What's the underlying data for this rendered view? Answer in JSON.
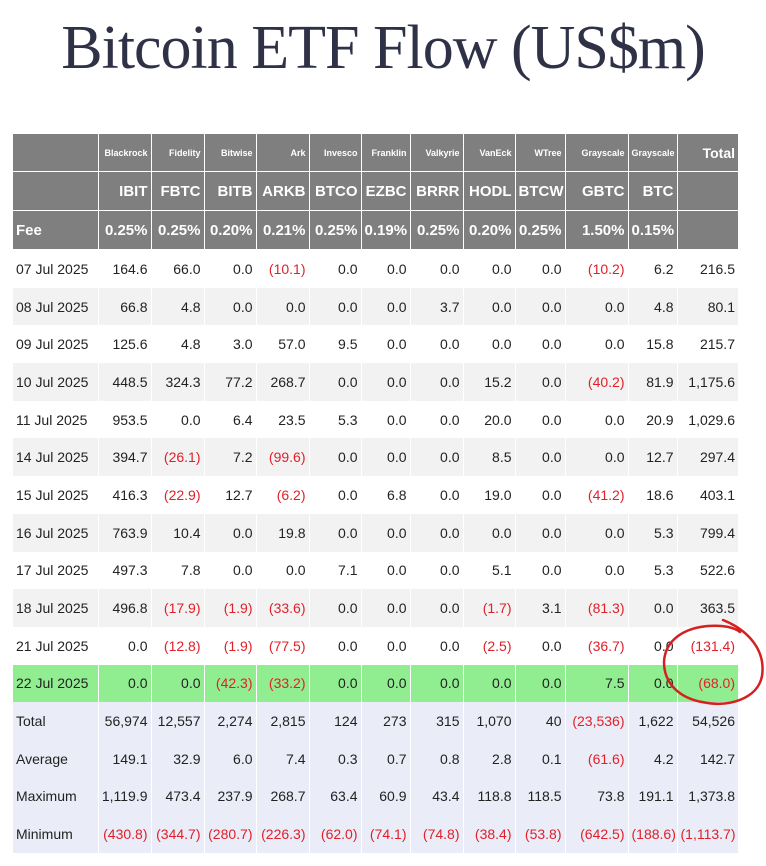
{
  "title": "Bitcoin ETF Flow (US$m)",
  "chart_data": {
    "type": "table",
    "issuers": [
      "Blackrock",
      "Fidelity",
      "Bitwise",
      "Ark",
      "Invesco",
      "Franklin",
      "Valkyrie",
      "VanEck",
      "WTree",
      "Grayscale",
      "Grayscale"
    ],
    "total_header": "Total",
    "tickers": [
      "IBIT",
      "FBTC",
      "BITB",
      "ARKB",
      "BTCO",
      "EZBC",
      "BRRR",
      "HODL",
      "BTCW",
      "GBTC",
      "BTC"
    ],
    "fee_label": "Fee",
    "fees": [
      "0.25%",
      "0.25%",
      "0.20%",
      "0.21%",
      "0.25%",
      "0.19%",
      "0.25%",
      "0.20%",
      "0.25%",
      "1.50%",
      "0.15%"
    ],
    "rows": [
      {
        "date": "07 Jul 2025",
        "values": [
          "164.6",
          "66.0",
          "0.0",
          "(10.1)",
          "0.0",
          "0.0",
          "0.0",
          "0.0",
          "0.0",
          "(10.2)",
          "6.2",
          "216.5"
        ]
      },
      {
        "date": "08 Jul 2025",
        "values": [
          "66.8",
          "4.8",
          "0.0",
          "0.0",
          "0.0",
          "0.0",
          "3.7",
          "0.0",
          "0.0",
          "0.0",
          "4.8",
          "80.1"
        ]
      },
      {
        "date": "09 Jul 2025",
        "values": [
          "125.6",
          "4.8",
          "3.0",
          "57.0",
          "9.5",
          "0.0",
          "0.0",
          "0.0",
          "0.0",
          "0.0",
          "15.8",
          "215.7"
        ]
      },
      {
        "date": "10 Jul 2025",
        "values": [
          "448.5",
          "324.3",
          "77.2",
          "268.7",
          "0.0",
          "0.0",
          "0.0",
          "15.2",
          "0.0",
          "(40.2)",
          "81.9",
          "1,175.6"
        ]
      },
      {
        "date": "11 Jul 2025",
        "values": [
          "953.5",
          "0.0",
          "6.4",
          "23.5",
          "5.3",
          "0.0",
          "0.0",
          "20.0",
          "0.0",
          "0.0",
          "20.9",
          "1,029.6"
        ]
      },
      {
        "date": "14 Jul 2025",
        "values": [
          "394.7",
          "(26.1)",
          "7.2",
          "(99.6)",
          "0.0",
          "0.0",
          "0.0",
          "8.5",
          "0.0",
          "0.0",
          "12.7",
          "297.4"
        ]
      },
      {
        "date": "15 Jul 2025",
        "values": [
          "416.3",
          "(22.9)",
          "12.7",
          "(6.2)",
          "0.0",
          "6.8",
          "0.0",
          "19.0",
          "0.0",
          "(41.2)",
          "18.6",
          "403.1"
        ]
      },
      {
        "date": "16 Jul 2025",
        "values": [
          "763.9",
          "10.4",
          "0.0",
          "19.8",
          "0.0",
          "0.0",
          "0.0",
          "0.0",
          "0.0",
          "0.0",
          "5.3",
          "799.4"
        ]
      },
      {
        "date": "17 Jul 2025",
        "values": [
          "497.3",
          "7.8",
          "0.0",
          "0.0",
          "7.1",
          "0.0",
          "0.0",
          "5.1",
          "0.0",
          "0.0",
          "5.3",
          "522.6"
        ]
      },
      {
        "date": "18 Jul 2025",
        "values": [
          "496.8",
          "(17.9)",
          "(1.9)",
          "(33.6)",
          "0.0",
          "0.0",
          "0.0",
          "(1.7)",
          "3.1",
          "(81.3)",
          "0.0",
          "363.5"
        ]
      },
      {
        "date": "21 Jul 2025",
        "values": [
          "0.0",
          "(12.8)",
          "(1.9)",
          "(77.5)",
          "0.0",
          "0.0",
          "0.0",
          "(2.5)",
          "0.0",
          "(36.7)",
          "0.0",
          "(131.4)"
        ]
      },
      {
        "date": "22 Jul 2025",
        "values": [
          "0.0",
          "0.0",
          "(42.3)",
          "(33.2)",
          "0.0",
          "0.0",
          "0.0",
          "0.0",
          "0.0",
          "7.5",
          "0.0",
          "(68.0)"
        ],
        "highlight": true
      }
    ],
    "summary": [
      {
        "label": "Total",
        "values": [
          "56,974",
          "12,557",
          "2,274",
          "2,815",
          "124",
          "273",
          "315",
          "1,070",
          "40",
          "(23,536)",
          "1,622",
          "54,526"
        ]
      },
      {
        "label": "Average",
        "values": [
          "149.1",
          "32.9",
          "6.0",
          "7.4",
          "0.3",
          "0.7",
          "0.8",
          "2.8",
          "0.1",
          "(61.6)",
          "4.2",
          "142.7"
        ]
      },
      {
        "label": "Maximum",
        "values": [
          "1,119.9",
          "473.4",
          "237.9",
          "268.7",
          "63.4",
          "60.9",
          "43.4",
          "118.8",
          "118.5",
          "73.8",
          "191.1",
          "1,373.8"
        ]
      },
      {
        "label": "Minimum",
        "values": [
          "(430.8)",
          "(344.7)",
          "(280.7)",
          "(226.3)",
          "(62.0)",
          "(74.1)",
          "(74.8)",
          "(38.4)",
          "(53.8)",
          "(642.5)",
          "(188.6)",
          "(1,113.7)"
        ]
      }
    ],
    "colors": {
      "header_bg": "#7f7f7f",
      "negative": "#e0202a",
      "highlight_row": "#90ee90",
      "summary_bg": "#eaedf7",
      "annotation": "#d42020"
    }
  }
}
